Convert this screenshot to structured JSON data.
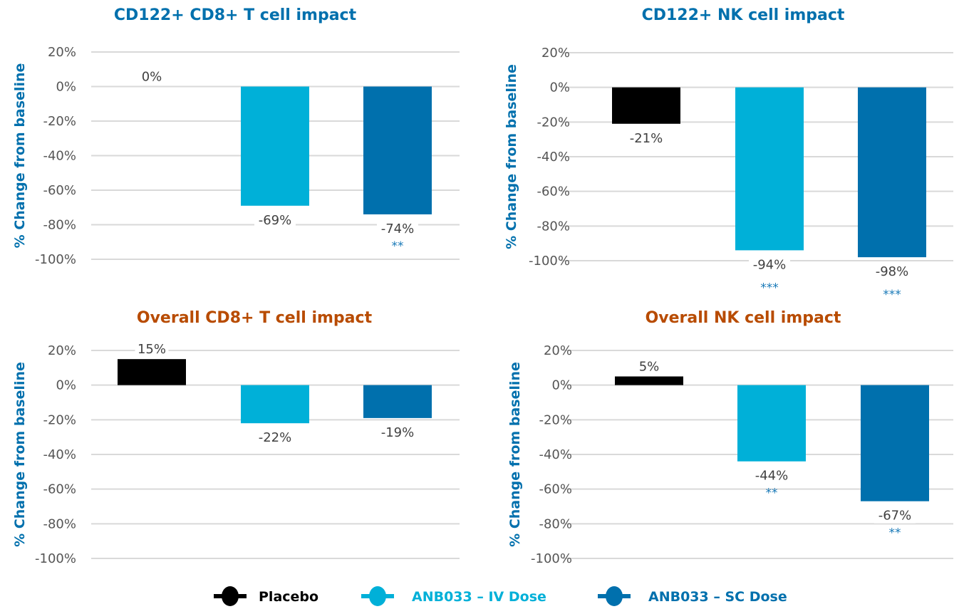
{
  "colors": {
    "placebo": "#000000",
    "iv": "#00b0d8",
    "sc": "#0070ad",
    "title_blue": "#0070ad",
    "title_orange": "#b84b00",
    "significance": "#1a7ab8"
  },
  "legend": [
    {
      "name": "Placebo",
      "color_key": "placebo"
    },
    {
      "name": "ANB033 – IV Dose",
      "color_key": "iv"
    },
    {
      "name": "ANB033 – SC Dose",
      "color_key": "sc"
    }
  ],
  "chart_data": [
    {
      "type": "bar",
      "title": "CD122+ CD8+ T cell impact",
      "title_color": "#0070ad",
      "ylabel": "% Change from baseline",
      "xlabel": "",
      "ylim": [
        -100,
        20
      ],
      "yticks": [
        "20%",
        "0%",
        "-20%",
        "-40%",
        "-60%",
        "-80%",
        "-100%"
      ],
      "ytick_values": [
        20,
        0,
        -20,
        -40,
        -60,
        -80,
        -100
      ],
      "grid": true,
      "categories": [
        "Placebo",
        "ANB033 – IV Dose",
        "ANB033 – SC Dose"
      ],
      "values": [
        0,
        -69,
        -74
      ],
      "data_labels": [
        "0%",
        "-69%",
        "-74%"
      ],
      "significance": [
        "",
        "",
        "**"
      ]
    },
    {
      "type": "bar",
      "title": "CD122+ NK cell impact",
      "title_color": "#0070ad",
      "ylabel": "% Change from baseline",
      "xlabel": "",
      "ylim": [
        -100,
        20
      ],
      "yticks": [
        "20%",
        "0%",
        "-20%",
        "-40%",
        "-60%",
        "-80%",
        "-100%"
      ],
      "ytick_values": [
        20,
        0,
        -20,
        -40,
        -60,
        -80,
        -100
      ],
      "grid": true,
      "categories": [
        "Placebo",
        "ANB033 – IV Dose",
        "ANB033 – SC Dose"
      ],
      "values": [
        -21,
        -94,
        -98
      ],
      "data_labels": [
        "-21%",
        "-94%",
        "-98%"
      ],
      "significance": [
        "",
        "***",
        "***"
      ]
    },
    {
      "type": "bar",
      "title": "Overall CD8+ T cell impact",
      "title_color": "#b84b00",
      "ylabel": "% Change from baseline",
      "xlabel": "",
      "ylim": [
        -100,
        20
      ],
      "yticks": [
        "20%",
        "0%",
        "-20%",
        "-40%",
        "-60%",
        "-80%",
        "-100%"
      ],
      "ytick_values": [
        20,
        0,
        -20,
        -40,
        -60,
        -80,
        -100
      ],
      "grid": true,
      "categories": [
        "Placebo",
        "ANB033 – IV Dose",
        "ANB033 – SC Dose"
      ],
      "values": [
        15,
        -22,
        -19
      ],
      "data_labels": [
        "15%",
        "-22%",
        "-19%"
      ],
      "significance": [
        "",
        "",
        ""
      ]
    },
    {
      "type": "bar",
      "title": "Overall NK cell impact",
      "title_color": "#b84b00",
      "ylabel": "% Change from baseline",
      "xlabel": "",
      "ylim": [
        -100,
        20
      ],
      "yticks": [
        "20%",
        "0%",
        "-20%",
        "-40%",
        "-60%",
        "-80%",
        "-100%"
      ],
      "ytick_values": [
        20,
        0,
        -20,
        -40,
        -60,
        -80,
        -100
      ],
      "grid": true,
      "categories": [
        "Placebo",
        "ANB033 – IV Dose",
        "ANB033 – SC Dose"
      ],
      "values": [
        5,
        -44,
        -67
      ],
      "data_labels": [
        "5%",
        "-44%",
        "-67%"
      ],
      "significance": [
        "",
        "**",
        "**"
      ]
    }
  ],
  "legend_placement": "bottom-center"
}
